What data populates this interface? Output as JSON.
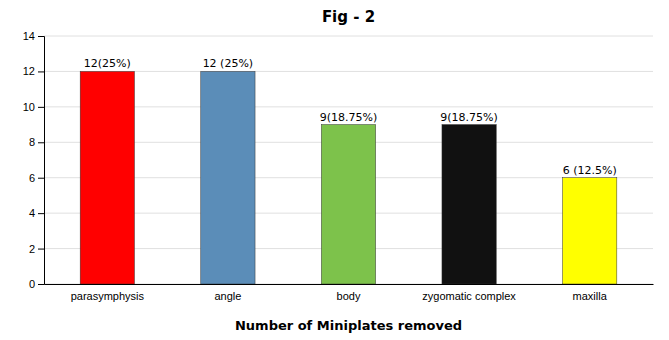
{
  "chart_data": {
    "type": "bar",
    "title": "Fig - 2",
    "xlabel": "Number of Miniplates removed",
    "categories": [
      "parasymphysis",
      "angle",
      "body",
      "zygomatic complex",
      "maxilla"
    ],
    "values": [
      12,
      12,
      9,
      9,
      6
    ],
    "value_labels": [
      "12(25%)",
      "12 (25%)",
      "9(18.75%)",
      "9(18.75%)",
      "6 (12.5%)"
    ],
    "colors": [
      "#ff0000",
      "#5b8db8",
      "#7dc24b",
      "#111111",
      "#ffff00"
    ],
    "ylim": [
      0,
      14
    ],
    "yticks": [
      0,
      2,
      4,
      6,
      8,
      10,
      12,
      14
    ],
    "grid": true
  }
}
